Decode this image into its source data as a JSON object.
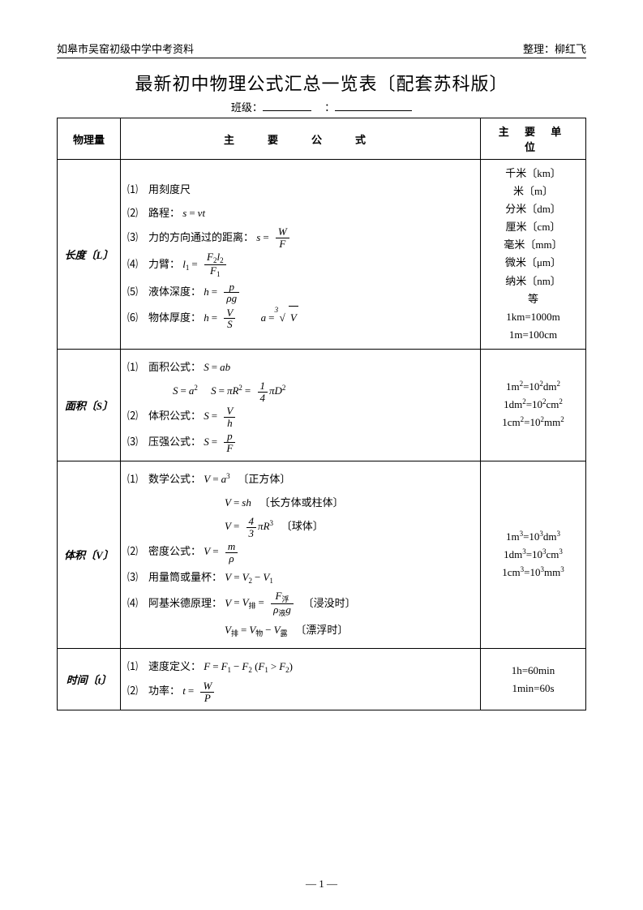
{
  "header": {
    "left": "如皋市吴窑初级中学中考资料",
    "right": "整理：柳红飞"
  },
  "title": "最新初中物理公式汇总一览表〔配套苏科版〕",
  "class_label": "班级：",
  "colon": "：",
  "table": {
    "head": {
      "c1": "物理量",
      "c2": "主　要　公　式",
      "c3": "主 要 单 位"
    },
    "rows": {
      "length": {
        "name": "长度〔L〕",
        "items": {
          "1": "⑴　用刻度尺",
          "2p": "⑵　路程：",
          "3p": "⑶　力的方向通过的距离：",
          "4p": "⑷　力臂：",
          "5p": "⑸　液体深度：",
          "6p": "⑹　物体厚度："
        },
        "units": "千米〔km〕\n米〔m〕\n分米〔dm〕\n厘米〔cm〕\n毫米〔mm〕\n微米〔μm〕\n纳米〔nm〕\n等\n1km=1000m\n1m=100cm"
      },
      "area": {
        "name": "面积〔S〕",
        "items": {
          "1p": "⑴　面积公式：",
          "2p": "⑵　体积公式：",
          "3p": "⑶　压强公式："
        },
        "u1": "1m",
        "u1b": "=10",
        "u1c": "dm",
        "u2": "1dm",
        "u2b": "=10",
        "u2c": "cm",
        "u3": "1cm",
        "u3b": "=10",
        "u3c": "mm"
      },
      "volume": {
        "name": "体积〔V〕",
        "items": {
          "1p": "⑴　数学公式：",
          "1n1": "〔正方体〕",
          "1n2": "〔长方体或柱体〕",
          "1n3": "〔球体〕",
          "2p": "⑵　密度公式：",
          "3p": "⑶　用量筒或量杯：",
          "4p": "⑷　阿基米德原理：",
          "4n1": "〔浸没时〕",
          "4n2": "〔漂浮时〕"
        },
        "u1": "1m",
        "u1b": "=10",
        "u1c": "dm",
        "u2": "1dm",
        "u2b": "=10",
        "u2c": "cm",
        "u3": "1cm",
        "u3b": "=10",
        "u3c": "mm"
      },
      "time": {
        "name": "时间〔t〕",
        "items": {
          "1p": "⑴　速度定义：",
          "2p": "⑵　功率："
        },
        "units": "1h=60min\n1min=60s"
      }
    }
  },
  "page_num": "— 1 —",
  "math": {
    "s": "s",
    "v": "v",
    "t": "t",
    "W": "W",
    "F": "F",
    "l": "l",
    "p": "p",
    "h": "h",
    "g": "g",
    "V": "V",
    "S": "S",
    "a": "a",
    "b": "b",
    "R": "R",
    "D": "D",
    "m": "m",
    "rho": "ρ",
    "pi": "π",
    "P": "P",
    "eq": "=",
    "minus": "−",
    "gt": ">",
    "four": "4",
    "three": "3",
    "one": "1",
    "two": "2",
    "sub1": "1",
    "sub2": "2",
    "sub_fu": "浮",
    "sub_ye": "液",
    "sub_pai": "排",
    "sub_wu": "物",
    "sub_lu": "露"
  }
}
